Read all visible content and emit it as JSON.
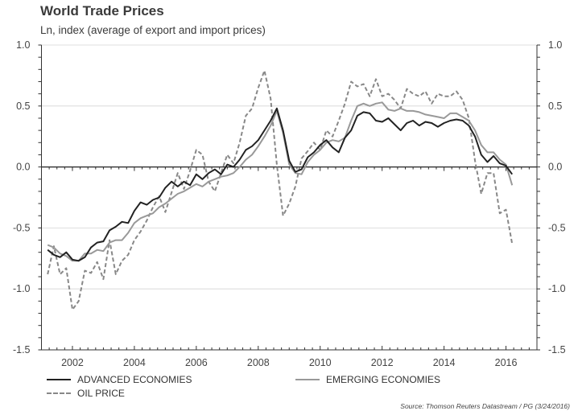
{
  "chart_data": {
    "type": "line",
    "title": "World Trade Prices",
    "subtitle": "Ln, index (average of export and import prices)",
    "xlabel": "",
    "ylabel": "",
    "xlim": [
      2001,
      2017
    ],
    "ylim": [
      -1.5,
      1.0
    ],
    "x_ticks": [
      2002,
      2004,
      2006,
      2008,
      2010,
      2012,
      2014,
      2016
    ],
    "x_tick_labels": [
      "2002",
      "2004",
      "2006",
      "2008",
      "2010",
      "2012",
      "2014",
      "2016"
    ],
    "y_ticks": [
      1.0,
      0.5,
      0.0,
      -0.5,
      -1.0,
      -1.5
    ],
    "y_tick_labels": [
      "1.0",
      "0.5",
      "0.0",
      "-0.5",
      "-1.0",
      "-1.5"
    ],
    "grid": "horizontal dotted at 1.0, 0.5, -0.5, -1.0; solid zero line",
    "legend_position": "bottom",
    "source": "Source: Thomson Reuters Datastream / PG (3/24/2016)",
    "series": [
      {
        "name": "ADVANCED ECONOMIES",
        "style": "solid-dark",
        "color": "#222222",
        "x": [
          2001.2,
          2001.4,
          2001.6,
          2001.8,
          2002.0,
          2002.2,
          2002.4,
          2002.6,
          2002.8,
          2003.0,
          2003.2,
          2003.4,
          2003.6,
          2003.8,
          2004.0,
          2004.2,
          2004.4,
          2004.6,
          2004.8,
          2005.0,
          2005.2,
          2005.4,
          2005.6,
          2005.8,
          2006.0,
          2006.2,
          2006.4,
          2006.6,
          2006.8,
          2007.0,
          2007.2,
          2007.4,
          2007.6,
          2007.8,
          2008.0,
          2008.2,
          2008.4,
          2008.6,
          2008.8,
          2009.0,
          2009.2,
          2009.4,
          2009.6,
          2009.8,
          2010.0,
          2010.2,
          2010.4,
          2010.6,
          2010.8,
          2011.0,
          2011.2,
          2011.4,
          2011.6,
          2011.8,
          2012.0,
          2012.2,
          2012.4,
          2012.6,
          2012.8,
          2013.0,
          2013.2,
          2013.4,
          2013.6,
          2013.8,
          2014.0,
          2014.2,
          2014.4,
          2014.6,
          2014.8,
          2015.0,
          2015.2,
          2015.4,
          2015.6,
          2015.8,
          2016.0,
          2016.2
        ],
        "values": [
          -0.68,
          -0.72,
          -0.74,
          -0.7,
          -0.76,
          -0.77,
          -0.74,
          -0.66,
          -0.62,
          -0.61,
          -0.52,
          -0.49,
          -0.45,
          -0.46,
          -0.36,
          -0.29,
          -0.31,
          -0.27,
          -0.25,
          -0.17,
          -0.12,
          -0.16,
          -0.12,
          -0.15,
          -0.06,
          -0.1,
          -0.05,
          -0.02,
          -0.06,
          0.02,
          0.0,
          0.06,
          0.14,
          0.17,
          0.22,
          0.3,
          0.38,
          0.48,
          0.3,
          0.05,
          -0.04,
          -0.02,
          0.08,
          0.12,
          0.18,
          0.22,
          0.16,
          0.12,
          0.24,
          0.3,
          0.42,
          0.45,
          0.44,
          0.38,
          0.37,
          0.4,
          0.35,
          0.3,
          0.36,
          0.38,
          0.34,
          0.37,
          0.36,
          0.33,
          0.36,
          0.38,
          0.39,
          0.38,
          0.34,
          0.25,
          0.1,
          0.04,
          0.09,
          0.03,
          0.01,
          -0.06
        ]
      },
      {
        "name": "EMERGING ECONOMIES",
        "style": "solid-light",
        "color": "#999999",
        "x": [
          2001.2,
          2001.4,
          2001.6,
          2001.8,
          2002.0,
          2002.2,
          2002.4,
          2002.6,
          2002.8,
          2003.0,
          2003.2,
          2003.4,
          2003.6,
          2003.8,
          2004.0,
          2004.2,
          2004.4,
          2004.6,
          2004.8,
          2005.0,
          2005.2,
          2005.4,
          2005.6,
          2005.8,
          2006.0,
          2006.2,
          2006.4,
          2006.6,
          2006.8,
          2007.0,
          2007.2,
          2007.4,
          2007.6,
          2007.8,
          2008.0,
          2008.2,
          2008.4,
          2008.6,
          2008.8,
          2009.0,
          2009.2,
          2009.4,
          2009.6,
          2009.8,
          2010.0,
          2010.2,
          2010.4,
          2010.6,
          2010.8,
          2011.0,
          2011.2,
          2011.4,
          2011.6,
          2011.8,
          2012.0,
          2012.2,
          2012.4,
          2012.6,
          2012.8,
          2013.0,
          2013.2,
          2013.4,
          2013.6,
          2013.8,
          2014.0,
          2014.2,
          2014.4,
          2014.6,
          2014.8,
          2015.0,
          2015.2,
          2015.4,
          2015.6,
          2015.8,
          2016.0,
          2016.2
        ],
        "values": [
          -0.64,
          -0.66,
          -0.71,
          -0.73,
          -0.77,
          -0.77,
          -0.71,
          -0.71,
          -0.68,
          -0.69,
          -0.62,
          -0.6,
          -0.6,
          -0.54,
          -0.46,
          -0.42,
          -0.4,
          -0.38,
          -0.33,
          -0.3,
          -0.26,
          -0.22,
          -0.2,
          -0.17,
          -0.14,
          -0.16,
          -0.12,
          -0.1,
          -0.08,
          -0.07,
          -0.05,
          0.0,
          0.06,
          0.1,
          0.17,
          0.25,
          0.34,
          0.46,
          0.28,
          0.02,
          -0.05,
          -0.06,
          0.04,
          0.1,
          0.14,
          0.2,
          0.22,
          0.21,
          0.24,
          0.38,
          0.5,
          0.52,
          0.5,
          0.52,
          0.53,
          0.47,
          0.46,
          0.48,
          0.46,
          0.46,
          0.45,
          0.43,
          0.42,
          0.41,
          0.4,
          0.44,
          0.44,
          0.41,
          0.38,
          0.3,
          0.18,
          0.12,
          0.12,
          0.06,
          0.02,
          -0.15
        ]
      },
      {
        "name": "OIL PRICE",
        "style": "dashed",
        "color": "#888888",
        "x": [
          2001.2,
          2001.4,
          2001.6,
          2001.8,
          2002.0,
          2002.2,
          2002.4,
          2002.6,
          2002.8,
          2003.0,
          2003.2,
          2003.4,
          2003.6,
          2003.8,
          2004.0,
          2004.2,
          2004.4,
          2004.6,
          2004.8,
          2005.0,
          2005.2,
          2005.4,
          2005.6,
          2005.8,
          2006.0,
          2006.2,
          2006.4,
          2006.6,
          2006.8,
          2007.0,
          2007.2,
          2007.4,
          2007.6,
          2007.8,
          2008.0,
          2008.2,
          2008.4,
          2008.6,
          2008.8,
          2009.0,
          2009.2,
          2009.4,
          2009.6,
          2009.8,
          2010.0,
          2010.2,
          2010.4,
          2010.6,
          2010.8,
          2011.0,
          2011.2,
          2011.4,
          2011.6,
          2011.8,
          2012.0,
          2012.2,
          2012.4,
          2012.6,
          2012.8,
          2013.0,
          2013.2,
          2013.4,
          2013.6,
          2013.8,
          2014.0,
          2014.2,
          2014.4,
          2014.6,
          2014.8,
          2015.0,
          2015.2,
          2015.4,
          2015.6,
          2015.8,
          2016.0,
          2016.2
        ],
        "values": [
          -0.88,
          -0.65,
          -0.88,
          -0.83,
          -1.17,
          -1.1,
          -0.85,
          -0.87,
          -0.78,
          -0.92,
          -0.6,
          -0.88,
          -0.77,
          -0.72,
          -0.6,
          -0.53,
          -0.44,
          -0.33,
          -0.24,
          -0.37,
          -0.21,
          -0.05,
          -0.18,
          -0.03,
          0.14,
          0.1,
          -0.12,
          -0.2,
          -0.05,
          0.1,
          0.03,
          0.2,
          0.42,
          0.48,
          0.65,
          0.79,
          0.56,
          0.02,
          -0.4,
          -0.3,
          -0.16,
          0.07,
          0.13,
          0.2,
          0.14,
          0.3,
          0.25,
          0.38,
          0.52,
          0.7,
          0.66,
          0.68,
          0.58,
          0.72,
          0.58,
          0.6,
          0.55,
          0.48,
          0.64,
          0.6,
          0.58,
          0.62,
          0.52,
          0.6,
          0.58,
          0.58,
          0.62,
          0.55,
          0.4,
          0.05,
          -0.22,
          -0.05,
          -0.05,
          -0.38,
          -0.35,
          -0.63
        ]
      }
    ]
  },
  "legend": {
    "items": [
      {
        "label": "ADVANCED ECONOMIES",
        "style": "solid-dark"
      },
      {
        "label": "EMERGING ECONOMIES",
        "style": "solid-light"
      },
      {
        "label": "OIL PRICE",
        "style": "dashed"
      }
    ]
  }
}
